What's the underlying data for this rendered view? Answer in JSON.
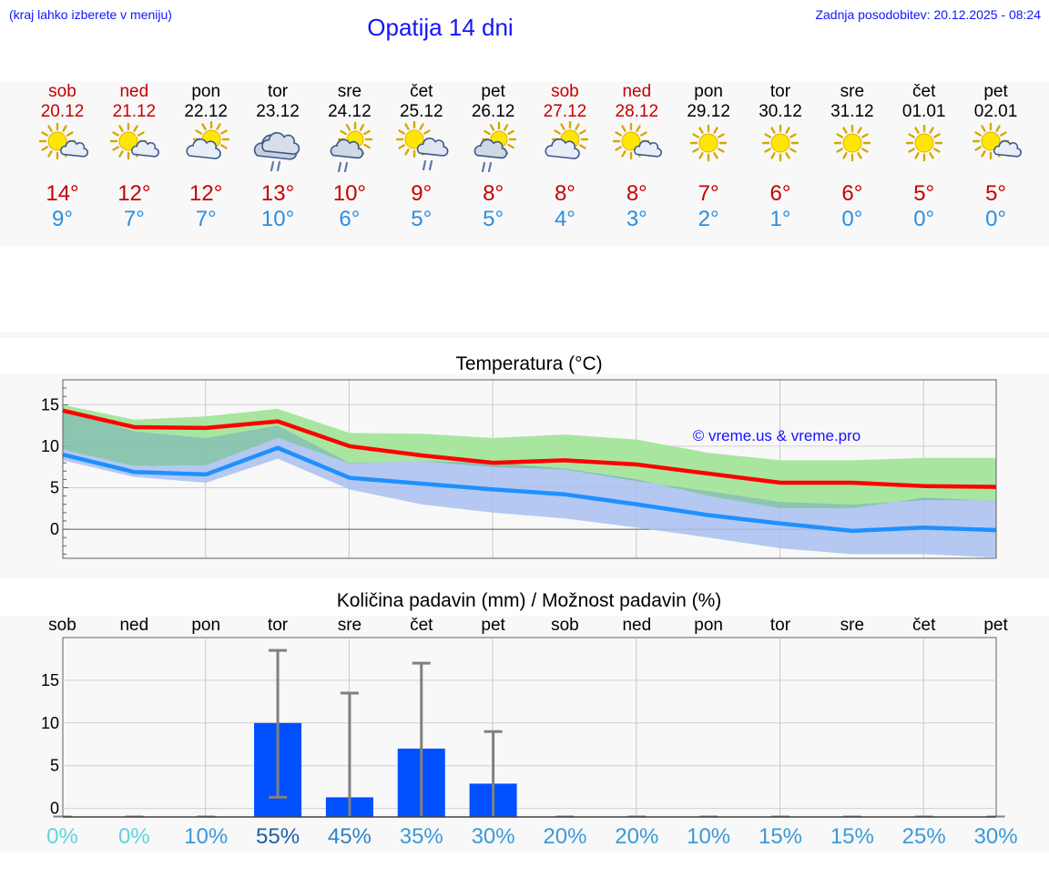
{
  "header": {
    "hint": "(kraj lahko izberete v meniju)",
    "title": "Opatija 14 dni",
    "updated": "Zadnja posodobitev: 20.12.2025 - 08:24"
  },
  "days": [
    {
      "name": "sob",
      "date": "20.12",
      "weekend": true,
      "icon": "sun-cloud-icon",
      "max": "14°",
      "min": "9°"
    },
    {
      "name": "ned",
      "date": "21.12",
      "weekend": true,
      "icon": "sun-cloud-icon",
      "max": "12°",
      "min": "7°"
    },
    {
      "name": "pon",
      "date": "22.12",
      "weekend": false,
      "icon": "cloud-sun-icon",
      "max": "12°",
      "min": "7°"
    },
    {
      "name": "tor",
      "date": "23.12",
      "weekend": false,
      "icon": "cloud-rain-icon",
      "max": "13°",
      "min": "10°"
    },
    {
      "name": "sre",
      "date": "24.12",
      "weekend": false,
      "icon": "cloud-sun-rain-icon",
      "max": "10°",
      "min": "6°"
    },
    {
      "name": "čet",
      "date": "25.12",
      "weekend": false,
      "icon": "sun-cloud-rain-icon",
      "max": "9°",
      "min": "5°"
    },
    {
      "name": "pet",
      "date": "26.12",
      "weekend": false,
      "icon": "cloud-sun-rain-icon",
      "max": "8°",
      "min": "5°"
    },
    {
      "name": "sob",
      "date": "27.12",
      "weekend": true,
      "icon": "cloud-sun-icon",
      "max": "8°",
      "min": "4°"
    },
    {
      "name": "ned",
      "date": "28.12",
      "weekend": true,
      "icon": "sun-cloud-icon",
      "max": "8°",
      "min": "3°"
    },
    {
      "name": "pon",
      "date": "29.12",
      "weekend": false,
      "icon": "sun-icon",
      "max": "7°",
      "min": "2°"
    },
    {
      "name": "tor",
      "date": "30.12",
      "weekend": false,
      "icon": "sun-icon",
      "max": "6°",
      "min": "1°"
    },
    {
      "name": "sre",
      "date": "31.12",
      "weekend": false,
      "icon": "sun-icon",
      "max": "6°",
      "min": "0°"
    },
    {
      "name": "čet",
      "date": "01.01",
      "weekend": false,
      "icon": "sun-icon",
      "max": "5°",
      "min": "0°"
    },
    {
      "name": "pet",
      "date": "02.01",
      "weekend": false,
      "icon": "sun-cloud-icon",
      "max": "5°",
      "min": "0°"
    }
  ],
  "colors": {
    "red": "#c80000",
    "blue_text": "#2a8ee0",
    "title_blue": "#1414ff",
    "max_line": "#ff0000",
    "min_line": "#1e90ff",
    "max_band": "#a8e6a0",
    "min_band": "#a8c0f0",
    "overlap": "#80c0a8",
    "bar": "#0050ff",
    "whisker": "#808080"
  },
  "chart_data": [
    {
      "type": "line",
      "title": "Temperatura (°C)",
      "watermark": "© vreme.us & vreme.pro",
      "x": [
        0,
        1,
        2,
        3,
        4,
        5,
        6,
        7,
        8,
        9,
        10,
        11,
        12,
        13
      ],
      "yticks": [
        0,
        5,
        10,
        15
      ],
      "ylim": [
        -3.5,
        18
      ],
      "series": [
        {
          "name": "max",
          "values": [
            14.3,
            12.3,
            12.2,
            13.0,
            10.0,
            8.9,
            8.0,
            8.3,
            7.8,
            6.7,
            5.6,
            5.6,
            5.2,
            5.1
          ],
          "band_low": [
            14.5,
            11.8,
            11.0,
            12.5,
            8.0,
            8.2,
            7.5,
            7.2,
            5.8,
            4.6,
            3.3,
            3.0,
            3.5,
            3.5
          ],
          "band_high": [
            15.0,
            13.2,
            13.6,
            14.5,
            11.6,
            11.5,
            11.0,
            11.4,
            10.8,
            9.2,
            8.3,
            8.3,
            8.6,
            8.6
          ]
        },
        {
          "name": "min",
          "values": [
            9.0,
            6.9,
            6.6,
            9.8,
            6.2,
            5.5,
            4.8,
            4.2,
            3.0,
            1.7,
            0.7,
            -0.2,
            0.2,
            -0.1
          ],
          "band_low": [
            8.3,
            6.3,
            5.6,
            8.5,
            4.8,
            3.0,
            2.0,
            1.3,
            0.2,
            -1.0,
            -2.3,
            -3.0,
            -3.0,
            -3.4
          ],
          "band_high": [
            9.6,
            7.6,
            7.7,
            11.0,
            7.9,
            8.2,
            8.0,
            7.3,
            6.0,
            4.0,
            2.5,
            2.5,
            3.8,
            3.4
          ]
        }
      ]
    },
    {
      "type": "bar",
      "title": "Količina padavin (mm) / Možnost padavin (%)",
      "categories": [
        "sob",
        "ned",
        "pon",
        "tor",
        "sre",
        "čet",
        "pet",
        "sob",
        "ned",
        "pon",
        "tor",
        "sre",
        "čet",
        "pet"
      ],
      "yticks": [
        0,
        5,
        10,
        15
      ],
      "ylim": [
        -1,
        20
      ],
      "values": [
        0,
        0,
        0,
        10,
        1.3,
        7,
        2.9,
        0,
        0,
        0,
        0,
        0,
        0,
        0
      ],
      "error_low": [
        0,
        0,
        0,
        1.3,
        0,
        0,
        0,
        0,
        0,
        0,
        0,
        0,
        0,
        0
      ],
      "error_high": [
        0,
        0,
        0,
        18.5,
        13.5,
        17,
        9,
        0,
        0,
        0,
        0,
        0,
        0,
        0
      ],
      "probability": [
        "0%",
        "0%",
        "10%",
        "55%",
        "45%",
        "35%",
        "30%",
        "20%",
        "20%",
        "10%",
        "15%",
        "15%",
        "25%",
        "30%"
      ],
      "probability_colors": [
        "#5fd3e0",
        "#5fd3e0",
        "#3a9ad8",
        "#1f5fa8",
        "#2e82c8",
        "#3a9ad8",
        "#3a9ad8",
        "#3a9ad8",
        "#3a9ad8",
        "#3a9ad8",
        "#3a9ad8",
        "#3a9ad8",
        "#3a9ad8",
        "#3a9ad8"
      ]
    }
  ]
}
